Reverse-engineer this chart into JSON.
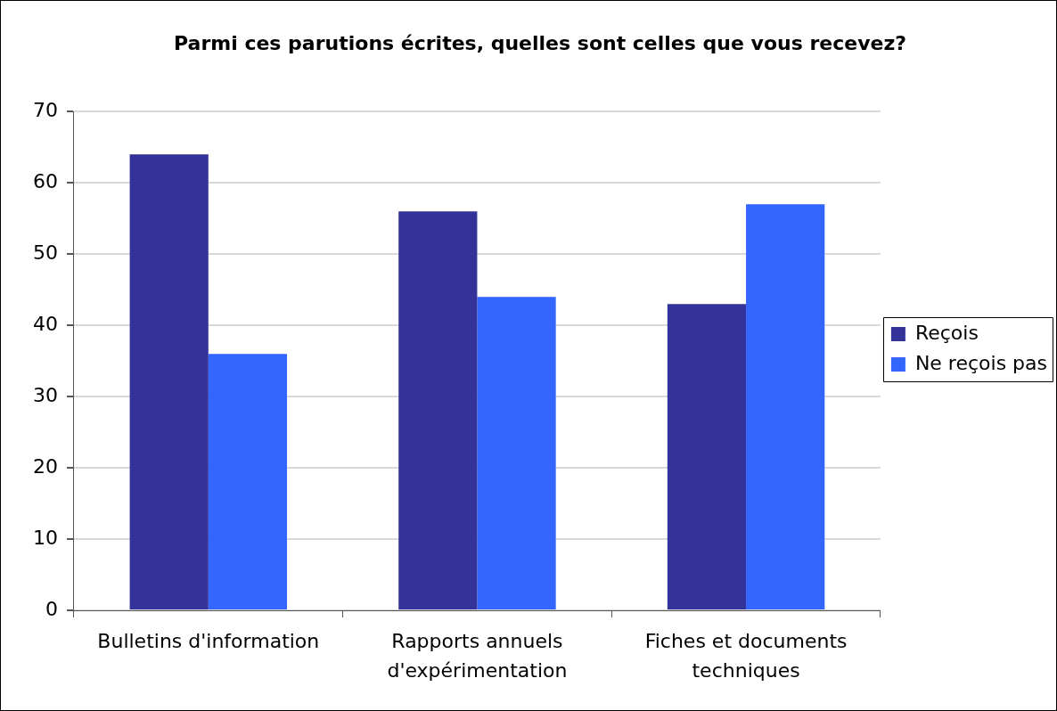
{
  "chart_data": {
    "type": "bar",
    "title": "Parmi ces parutions écrites, quelles sont celles que vous recevez?",
    "categories": [
      "Bulletins d'information",
      "Rapports annuels d'expérimentation",
      "Fiches et documents techniques"
    ],
    "series": [
      {
        "name": "Reçois",
        "color": "#333399",
        "values": [
          64,
          56,
          43
        ]
      },
      {
        "name": "Ne reçois pas",
        "color": "#3366ff",
        "values": [
          36,
          44,
          57
        ]
      }
    ],
    "ylim": [
      0,
      70
    ],
    "yticks": [
      0,
      10,
      20,
      30,
      40,
      50,
      60,
      70
    ],
    "grid": "y",
    "legend": "right"
  }
}
